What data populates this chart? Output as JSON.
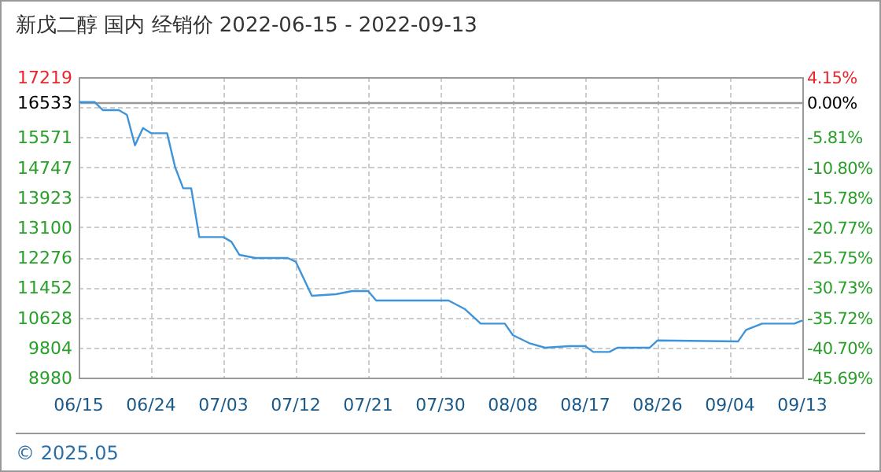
{
  "chart_data": {
    "type": "line",
    "title": "新戊二醇 国内 经销价 2022-06-15 - 2022-09-13",
    "x": [
      "2022-06-15",
      "2022-06-17",
      "2022-06-18",
      "2022-06-20",
      "2022-06-21",
      "2022-06-22",
      "2022-06-23",
      "2022-06-24",
      "2022-06-26",
      "2022-06-27",
      "2022-06-28",
      "2022-06-29",
      "2022-06-30",
      "2022-07-03",
      "2022-07-04",
      "2022-07-05",
      "2022-07-07",
      "2022-07-11",
      "2022-07-12",
      "2022-07-14",
      "2022-07-17",
      "2022-07-19",
      "2022-07-21",
      "2022-07-22",
      "2022-07-31",
      "2022-08-02",
      "2022-08-04",
      "2022-08-07",
      "2022-08-08",
      "2022-08-10",
      "2022-08-12",
      "2022-08-15",
      "2022-08-17",
      "2022-08-18",
      "2022-08-20",
      "2022-08-21",
      "2022-08-25",
      "2022-08-26",
      "2022-09-05",
      "2022-09-06",
      "2022-09-08",
      "2022-09-12",
      "2022-09-13"
    ],
    "series": [
      {
        "color": "#3d94db",
        "values": [
          16533,
          16533,
          16313,
          16313,
          16184,
          15350,
          15824,
          15680,
          15680,
          14746,
          14170,
          14170,
          12833,
          12833,
          12704,
          12344,
          12258,
          12258,
          12157,
          11222,
          11266,
          11352,
          11352,
          11093,
          11093,
          10863,
          10460,
          10460,
          10144,
          9928,
          9799,
          9842,
          9842,
          9684,
          9684,
          9799,
          9799,
          10000,
          9971,
          10288,
          10460,
          10460,
          10547
        ]
      }
    ],
    "xlim": [
      "2022-06-15",
      "2022-09-13"
    ],
    "xticks": [
      {
        "value": "2022-06-15",
        "label": "06/15"
      },
      {
        "value": "2022-06-24",
        "label": "06/24"
      },
      {
        "value": "2022-07-03",
        "label": "07/03"
      },
      {
        "value": "2022-07-12",
        "label": "07/12"
      },
      {
        "value": "2022-07-21",
        "label": "07/21"
      },
      {
        "value": "2022-07-30",
        "label": "07/30"
      },
      {
        "value": "2022-08-08",
        "label": "08/08"
      },
      {
        "value": "2022-08-17",
        "label": "08/17"
      },
      {
        "value": "2022-08-26",
        "label": "08/26"
      },
      {
        "value": "2022-09-04",
        "label": "09/04"
      },
      {
        "value": "2022-09-13",
        "label": "09/13"
      }
    ],
    "ylim": [
      8980,
      17219
    ],
    "yticks": [
      8980,
      9804,
      10628,
      11452,
      12276,
      13100,
      13923,
      14747,
      15571,
      {
        "value": 16395,
        "label": null
      },
      16533,
      17219
    ],
    "y2lim": [
      -45.69,
      4.15
    ],
    "y2ticks": [
      {
        "value": -45.69,
        "label": "-45.69%"
      },
      {
        "value": -40.7,
        "label": "-40.70%"
      },
      {
        "value": -35.72,
        "label": "-35.72%"
      },
      {
        "value": -30.73,
        "label": "-30.73%"
      },
      {
        "value": -25.75,
        "label": "-25.75%"
      },
      {
        "value": -20.77,
        "label": "-20.77%"
      },
      {
        "value": -15.78,
        "label": "-15.78%"
      },
      {
        "value": -10.8,
        "label": "-10.80%"
      },
      {
        "value": -5.81,
        "label": "-5.81%"
      },
      {
        "value": 0,
        "label": "0.00%"
      },
      {
        "value": 4.15,
        "label": "4.15%"
      }
    ],
    "ref_lines": [
      {
        "axis": "y",
        "value": 16533,
        "color": "#999999"
      }
    ],
    "grid": true,
    "annotations": [
      "© 2025.05"
    ]
  }
}
